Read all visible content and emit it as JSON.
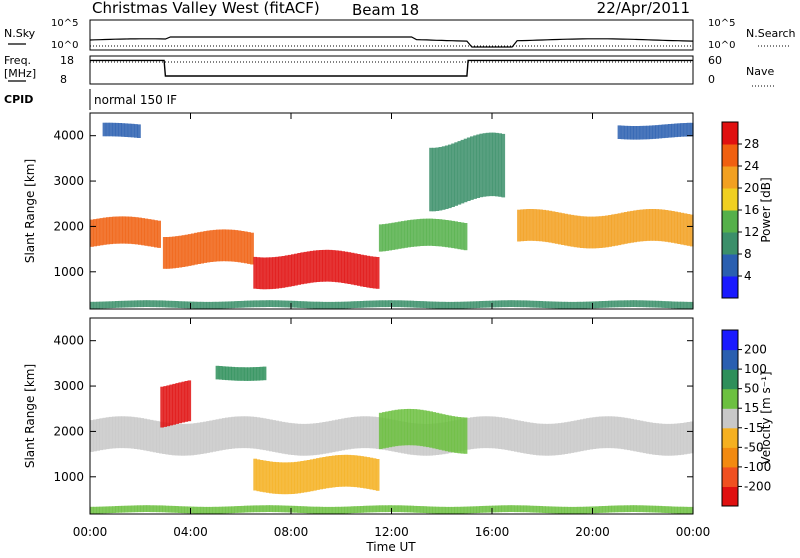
{
  "header": {
    "station": "Christmas Valley West (fitACF)",
    "beam": "Beam 18",
    "date": "22/Apr/2011"
  },
  "summary": {
    "nsky_label": "N.Sky",
    "nsky_ticks": [
      "10^5",
      "10^0"
    ],
    "nsearch_label": "N.Search",
    "freq_label": "Freq.",
    "freq_unit": "[MHz]",
    "freq_ticks": [
      "18",
      "8"
    ],
    "nave_label": "Nave",
    "nave_ticks": [
      "60",
      "0"
    ],
    "cpid_label": "CPID",
    "cpid_value": "normal 150 IF",
    "freq_series": [
      {
        "t": 0,
        "mhz": 17.0
      },
      {
        "t": 2.95,
        "mhz": 17.0
      },
      {
        "t": 3.0,
        "mhz": 10.5
      },
      {
        "t": 15.0,
        "mhz": 10.5
      },
      {
        "t": 15.05,
        "mhz": 17.0
      },
      {
        "t": 24,
        "mhz": 17.0
      }
    ]
  },
  "chart_data": [
    {
      "type": "heatmap",
      "title": "Power",
      "xlabel": "Time UT",
      "ylabel": "Slant Range [km]",
      "xlim": [
        0,
        24
      ],
      "ylim": [
        180,
        4500
      ],
      "x_ticks": [
        "00:00",
        "04:00",
        "08:00",
        "12:00",
        "16:00",
        "20:00",
        "00:00"
      ],
      "y_ticks": [
        "1000",
        "2000",
        "3000",
        "4000"
      ],
      "colorbar": {
        "label": "Power [dB]",
        "ticks": [
          "4",
          "8",
          "12",
          "16",
          "20",
          "24",
          "28"
        ],
        "range": [
          0,
          32
        ],
        "colors": [
          "#1a1aff",
          "#2a5fb0",
          "#3b8f6a",
          "#55b04a",
          "#f0d020",
          "#f2a020",
          "#f06010",
          "#e01010"
        ]
      },
      "echo_regions": [
        {
          "t0": 0.0,
          "t1": 2.8,
          "r_center": 1850,
          "r_width": 600,
          "power": 24
        },
        {
          "t0": 2.9,
          "t1": 6.5,
          "r_center": 1500,
          "r_width": 700,
          "power": 26
        },
        {
          "t0": 6.5,
          "t1": 11.5,
          "r_center": 1050,
          "r_width": 700,
          "power": 30
        },
        {
          "t0": 11.5,
          "t1": 15.0,
          "r_center": 1800,
          "r_width": 600,
          "power": 14
        },
        {
          "t0": 17.0,
          "t1": 24.0,
          "r_center": 1950,
          "r_width": 700,
          "power": 22
        },
        {
          "t0": 0.0,
          "t1": 24.0,
          "r_center": 280,
          "r_width": 150,
          "power": 10
        },
        {
          "t0": 13.5,
          "t1": 16.5,
          "r_center": 3200,
          "r_width": 1400,
          "power": 8
        },
        {
          "t0": 0.5,
          "t1": 2.0,
          "r_center": 4100,
          "r_width": 300,
          "power": 6
        },
        {
          "t0": 21.0,
          "t1": 24.0,
          "r_center": 4100,
          "r_width": 300,
          "power": 6
        }
      ]
    },
    {
      "type": "heatmap",
      "title": "Velocity",
      "xlabel": "Time UT",
      "ylabel": "Slant Range [km]",
      "xlim": [
        0,
        24
      ],
      "ylim": [
        180,
        4500
      ],
      "x_ticks": [
        "00:00",
        "04:00",
        "08:00",
        "12:00",
        "16:00",
        "20:00",
        "00:00"
      ],
      "y_ticks": [
        "1000",
        "2000",
        "3000",
        "4000"
      ],
      "colorbar": {
        "label": "Velocity [m s⁻¹]",
        "ticks": [
          "200",
          "100",
          "50",
          "15",
          "-15",
          "-50",
          "-100",
          "-200"
        ],
        "range": [
          -250,
          250
        ],
        "colors": [
          "#e01010",
          "#f05020",
          "#f28a10",
          "#f5b020",
          "#c8c8c8",
          "#6cc040",
          "#2e8f5a",
          "#2a5fb0",
          "#1a1aff"
        ]
      },
      "echo_regions": [
        {
          "t0": 0.0,
          "t1": 24.0,
          "r_center": 1900,
          "r_width": 700,
          "velocity": 0
        },
        {
          "t0": 6.5,
          "t1": 11.5,
          "r_center": 1050,
          "r_width": 700,
          "velocity": -40
        },
        {
          "t0": 2.8,
          "t1": 4.0,
          "r_center": 2600,
          "r_width": 900,
          "velocity": -200
        },
        {
          "t0": 5.0,
          "t1": 7.0,
          "r_center": 3300,
          "r_width": 300,
          "velocity": 120
        },
        {
          "t0": 11.5,
          "t1": 15.0,
          "r_center": 2000,
          "r_width": 800,
          "velocity": 40
        },
        {
          "t0": 0.0,
          "t1": 24.0,
          "r_center": 280,
          "r_width": 150,
          "velocity": 30
        }
      ]
    }
  ]
}
